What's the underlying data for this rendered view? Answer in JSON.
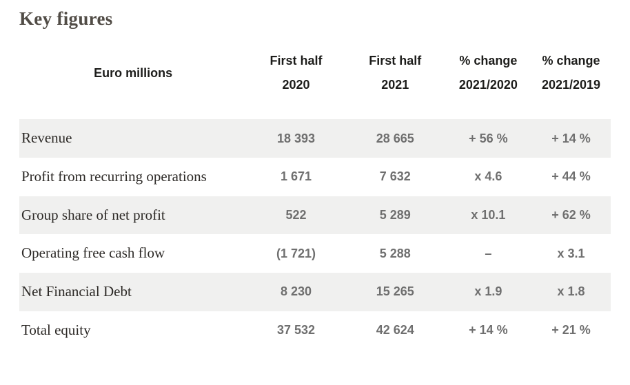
{
  "page_title": "Key figures",
  "colors": {
    "stripe_row_background": "#f0f0ef",
    "title_text": "#514c46",
    "row_label_text": "#2d2a27",
    "value_text": "#6f6f6f",
    "header_text": "#1d1d1b"
  },
  "table": {
    "header": {
      "label_column": "Euro millions",
      "cols": [
        {
          "line1": "First half",
          "line2": "2020"
        },
        {
          "line1": "First half",
          "line2": "2021"
        },
        {
          "line1": "% change",
          "line2": "2021/2020"
        },
        {
          "line1": "% change",
          "line2": "2021/2019"
        }
      ]
    },
    "rows": [
      {
        "label": "Revenue",
        "values": [
          "18 393",
          "28 665",
          "+ 56 %",
          "+ 14 %"
        ]
      },
      {
        "label": "Profit from recurring operations",
        "values": [
          "1 671",
          "7 632",
          "x 4.6",
          "+ 44 %"
        ]
      },
      {
        "label": "Group share of net profit",
        "values": [
          "522",
          "5 289",
          "x 10.1",
          "+ 62 %"
        ]
      },
      {
        "label": "Operating free cash flow",
        "values": [
          "(1 721)",
          "5 288",
          "–",
          "x 3.1"
        ]
      },
      {
        "label": "Net Financial Debt",
        "values": [
          "8 230",
          "15 265",
          "x 1.9",
          "x 1.8"
        ]
      },
      {
        "label": "Total equity",
        "values": [
          "37 532",
          "42 624",
          "+ 14 %",
          "+ 21 %"
        ]
      }
    ]
  },
  "chart_data": {
    "type": "table",
    "title": "Key figures",
    "unit_label": "Euro millions",
    "columns": [
      "First half 2020",
      "First half 2021",
      "% change 2021/2020",
      "% change 2021/2019"
    ],
    "rows": [
      {
        "label": "Revenue",
        "first_half_2020": 18393,
        "first_half_2021": 28665,
        "change_2021_2020": "+ 56 %",
        "change_2021_2019": "+ 14 %"
      },
      {
        "label": "Profit from recurring operations",
        "first_half_2020": 1671,
        "first_half_2021": 7632,
        "change_2021_2020": "x 4.6",
        "change_2021_2019": "+ 44 %"
      },
      {
        "label": "Group share of net profit",
        "first_half_2020": 522,
        "first_half_2021": 5289,
        "change_2021_2020": "x 10.1",
        "change_2021_2019": "+ 62 %"
      },
      {
        "label": "Operating free cash flow",
        "first_half_2020": -1721,
        "first_half_2021": 5288,
        "change_2021_2020": "–",
        "change_2021_2019": "x 3.1"
      },
      {
        "label": "Net Financial Debt",
        "first_half_2020": 8230,
        "first_half_2021": 15265,
        "change_2021_2020": "x 1.9",
        "change_2021_2019": "x 1.8"
      },
      {
        "label": "Total equity",
        "first_half_2020": 37532,
        "first_half_2021": 42624,
        "change_2021_2020": "+ 14 %",
        "change_2021_2019": "+ 21 %"
      }
    ]
  }
}
